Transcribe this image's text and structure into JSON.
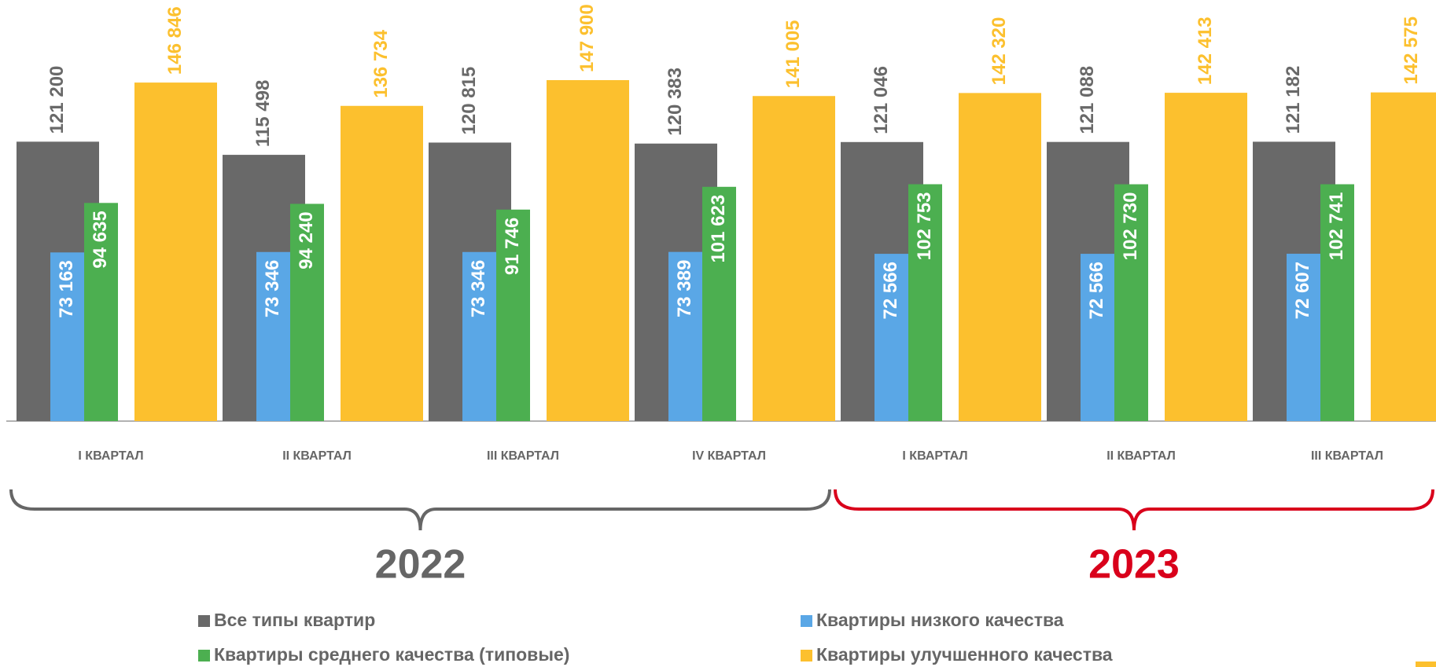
{
  "chart_data": {
    "type": "bar",
    "groups": [
      {
        "label": "2022",
        "color": "#666666",
        "categories": [
          "I КВАРТАЛ",
          "II КВАРТАЛ",
          "III КВАРТАЛ",
          "IV КВАРТАЛ"
        ]
      },
      {
        "label": "2023",
        "color": "#d9001b",
        "categories": [
          "I КВАРТАЛ",
          "II КВАРТАЛ",
          "III КВАРТАЛ"
        ]
      }
    ],
    "series": [
      {
        "name": "Все типы квартир",
        "color": "#696969",
        "values": [
          121200,
          115498,
          120815,
          120383,
          121046,
          121088,
          121182
        ],
        "value_labels": [
          "121 200",
          "115 498",
          "120 815",
          "120 383",
          "121 046",
          "121 088",
          "121 182"
        ]
      },
      {
        "name": "Квартиры низкого качества",
        "color": "#5aa7e6",
        "values": [
          73163,
          73346,
          73346,
          73389,
          72566,
          72566,
          72607
        ],
        "value_labels": [
          "73 163",
          "73 346",
          "73 346",
          "73 389",
          "72 566",
          "72 566",
          "72 607"
        ]
      },
      {
        "name": "Квартиры среднего качества (типовые)",
        "color": "#4caf50",
        "values": [
          94635,
          94240,
          91746,
          101623,
          102753,
          102730,
          102741
        ],
        "value_labels": [
          "94 635",
          "94 240",
          "91 746",
          "101 623",
          "102 753",
          "102 730",
          "102 741"
        ]
      },
      {
        "name": "Квартиры улучшенного качества",
        "color": "#fcc02e",
        "values": [
          146846,
          136734,
          147900,
          141005,
          142320,
          142413,
          142575
        ],
        "value_labels": [
          "146 846",
          "136 734",
          "147 900",
          "141 005",
          "142 320",
          "142 413",
          "142 575"
        ]
      }
    ]
  }
}
